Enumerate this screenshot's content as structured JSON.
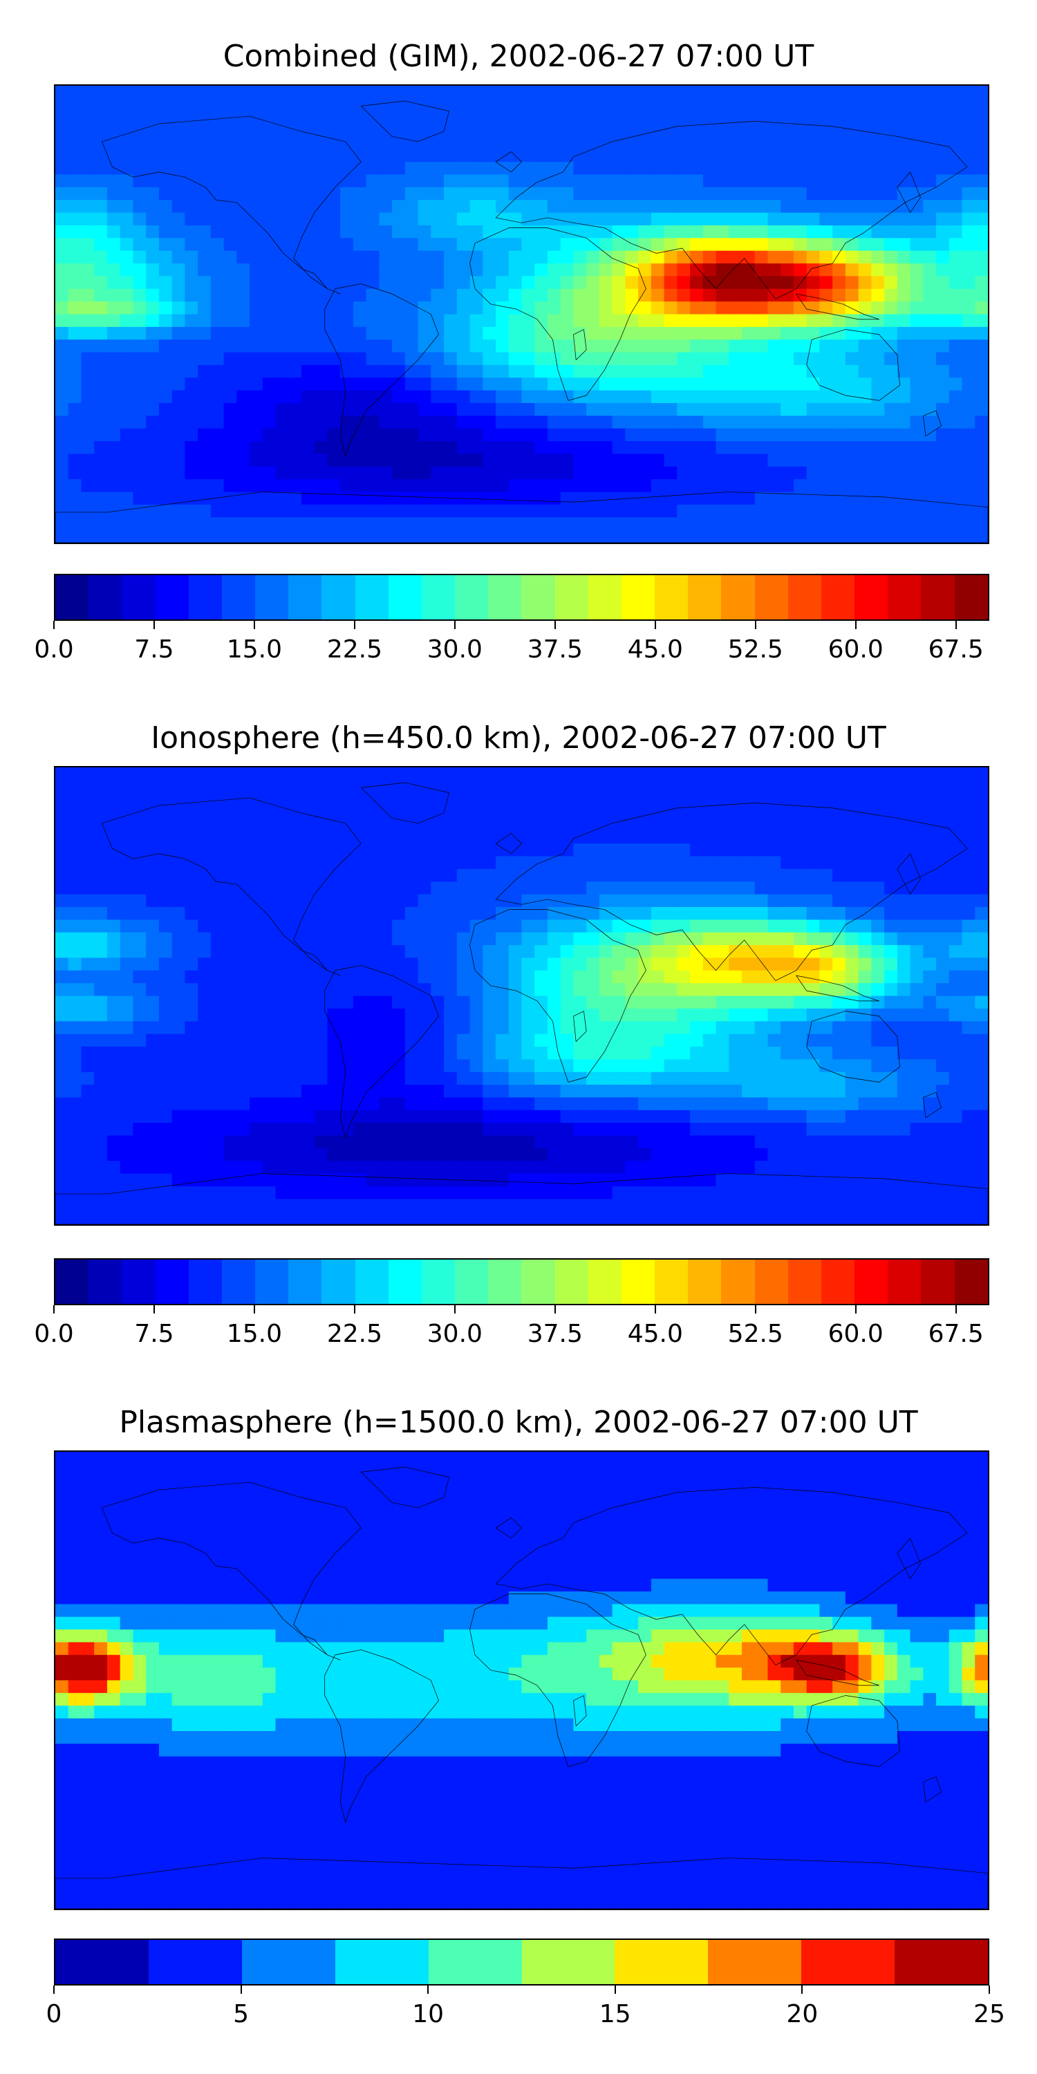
{
  "panels": [
    {
      "id": "combined",
      "title": "Combined (GIM), 2002-06-27 07:00 UT",
      "colorbar": {
        "min": 0,
        "max": 70,
        "step": 2.5,
        "tick_labels": [
          "0.0",
          "7.5",
          "15.0",
          "22.5",
          "30.0",
          "37.5",
          "45.0",
          "52.5",
          "60.0",
          "67.5"
        ],
        "tick_values": [
          0,
          7.5,
          15,
          22.5,
          30,
          37.5,
          45,
          52.5,
          60,
          67.5
        ]
      },
      "field": {
        "background": 14,
        "blobs": [
          {
            "lon": 115,
            "lat": 12,
            "slon": 28,
            "slat": 12,
            "amp": 40
          },
          {
            "lon": 75,
            "lat": 15,
            "slon": 22,
            "slat": 12,
            "amp": 30
          },
          {
            "lon": 40,
            "lat": 10,
            "slon": 35,
            "slat": 18,
            "amp": 18
          },
          {
            "lon": 20,
            "lat": -15,
            "slon": 45,
            "slat": 15,
            "amp": 12
          },
          {
            "lon": 110,
            "lat": -30,
            "slon": 40,
            "slat": 12,
            "amp": 10
          },
          {
            "lon": -165,
            "lat": 15,
            "slon": 25,
            "slat": 10,
            "amp": 14
          },
          {
            "lon": -165,
            "lat": 0,
            "slon": 25,
            "slat": 6,
            "amp": 16
          },
          {
            "lon": -175,
            "lat": 35,
            "slon": 20,
            "slat": 10,
            "amp": 10
          },
          {
            "lon": -20,
            "lat": 40,
            "slon": 25,
            "slat": 10,
            "amp": 8
          },
          {
            "lon": -60,
            "lat": -35,
            "slon": 40,
            "slat": 15,
            "amp": -8
          },
          {
            "lon": -30,
            "lat": -60,
            "slon": 80,
            "slat": 12,
            "amp": -8
          }
        ]
      }
    },
    {
      "id": "ionosphere",
      "title": "Ionosphere  (h=450.0 km), 2002-06-27 07:00 UT",
      "colorbar": {
        "min": 0,
        "max": 70,
        "step": 2.5,
        "tick_labels": [
          "0.0",
          "7.5",
          "15.0",
          "22.5",
          "30.0",
          "37.5",
          "45.0",
          "52.5",
          "60.0",
          "67.5"
        ],
        "tick_values": [
          0,
          7.5,
          15,
          22.5,
          30,
          37.5,
          45,
          52.5,
          60,
          67.5
        ]
      },
      "field": {
        "background": 12,
        "blobs": [
          {
            "lon": 85,
            "lat": 15,
            "slon": 30,
            "slat": 12,
            "amp": 22
          },
          {
            "lon": 120,
            "lat": 10,
            "slon": 22,
            "slat": 10,
            "amp": 20
          },
          {
            "lon": 40,
            "lat": 5,
            "slon": 40,
            "slat": 20,
            "amp": 18
          },
          {
            "lon": 20,
            "lat": -25,
            "slon": 45,
            "slat": 12,
            "amp": 10
          },
          {
            "lon": 115,
            "lat": -35,
            "slon": 35,
            "slat": 10,
            "amp": 8
          },
          {
            "lon": -170,
            "lat": 20,
            "slon": 20,
            "slat": 8,
            "amp": 12
          },
          {
            "lon": -170,
            "lat": -5,
            "slon": 20,
            "slat": 6,
            "amp": 10
          },
          {
            "lon": -40,
            "lat": -20,
            "slon": 30,
            "slat": 20,
            "amp": -6
          },
          {
            "lon": -30,
            "lat": -60,
            "slon": 80,
            "slat": 12,
            "amp": -8
          }
        ]
      }
    },
    {
      "id": "plasmasphere",
      "title": "Plasmasphere (h=1500.0 km), 2002-06-27 07:00 UT",
      "colorbar": {
        "min": 0,
        "max": 25,
        "step": 2.5,
        "tick_labels": [
          "0",
          "5",
          "10",
          "15",
          "20",
          "25"
        ],
        "tick_values": [
          0,
          5,
          10,
          15,
          20,
          25
        ]
      },
      "field": {
        "background": 3,
        "blobs": [
          {
            "lon": -170,
            "lat": 5,
            "slon": 14,
            "slat": 10,
            "amp": 20
          },
          {
            "lon": 120,
            "lat": 5,
            "slon": 18,
            "slat": 9,
            "amp": 15
          },
          {
            "lon": 80,
            "lat": 10,
            "slon": 30,
            "slat": 14,
            "amp": 8
          },
          {
            "lon": -10,
            "lat": 0,
            "slon": 150,
            "slat": 20,
            "amp": 6
          },
          {
            "lon": -120,
            "lat": 0,
            "slon": 20,
            "slat": 15,
            "amp": 4
          },
          {
            "lon": 40,
            "lat": 10,
            "slon": 40,
            "slat": 15,
            "amp": 2
          }
        ]
      }
    }
  ],
  "colors": {
    "jet_stops": [
      "#00007f",
      "#0000ff",
      "#007fff",
      "#00ffff",
      "#7fff7f",
      "#ffff00",
      "#ff7f00",
      "#ff0000",
      "#7f0000"
    ],
    "land_outline": "#000000",
    "frame": "#000000"
  }
}
